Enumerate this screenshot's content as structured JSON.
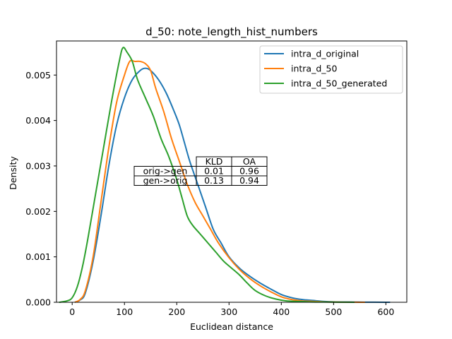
{
  "chart_data": {
    "type": "line",
    "title": "d_50: note_length_hist_numbers",
    "xlabel": "Euclidean distance",
    "ylabel": "Density",
    "xlim": [
      -30,
      640
    ],
    "ylim": [
      0,
      0.00575
    ],
    "xticks": [
      0,
      100,
      200,
      300,
      400,
      500,
      600
    ],
    "xtick_labels": [
      "0",
      "100",
      "200",
      "300",
      "400",
      "500",
      "600"
    ],
    "yticks": [
      0,
      0.001,
      0.002,
      0.003,
      0.004,
      0.005
    ],
    "ytick_labels": [
      "0.000",
      "0.001",
      "0.002",
      "0.003",
      "0.004",
      "0.005"
    ],
    "grid": false,
    "legend_position": "upper right",
    "series": [
      {
        "name": "intra_d_original",
        "color": "#1f77b4",
        "x": [
          5,
          15,
          25,
          40,
          55,
          70,
          85,
          100,
          115,
          130,
          140,
          150,
          165,
          180,
          195,
          205,
          215,
          225,
          240,
          255,
          270,
          285,
          300,
          320,
          340,
          360,
          380,
          400,
          420,
          440,
          460,
          480,
          500,
          530,
          560,
          600,
          608
        ],
        "y": [
          0.0,
          5e-05,
          0.0002,
          0.0009,
          0.0019,
          0.003,
          0.0039,
          0.0045,
          0.0049,
          0.0051,
          0.00515,
          0.0051,
          0.0049,
          0.0046,
          0.0042,
          0.0039,
          0.0035,
          0.0031,
          0.0026,
          0.0021,
          0.0016,
          0.0013,
          0.001,
          0.00075,
          0.00057,
          0.00042,
          0.00029,
          0.00017,
          0.0001,
          6e-05,
          4e-05,
          2e-05,
          1e-05,
          5e-06,
          2e-06,
          1e-06,
          0.0
        ]
      },
      {
        "name": "intra_d_50",
        "color": "#ff7f0e",
        "x": [
          5,
          15,
          25,
          40,
          55,
          70,
          85,
          100,
          110,
          120,
          130,
          140,
          150,
          160,
          175,
          190,
          205,
          220,
          235,
          250,
          265,
          280,
          300,
          320,
          340,
          360,
          380,
          400,
          420,
          440,
          460,
          480,
          500,
          530,
          560
        ],
        "y": [
          0.0,
          6e-05,
          0.00025,
          0.001,
          0.0022,
          0.0034,
          0.0044,
          0.005,
          0.0053,
          0.0053,
          0.0053,
          0.00525,
          0.0051,
          0.0047,
          0.0042,
          0.0036,
          0.0031,
          0.0026,
          0.0022,
          0.0019,
          0.0016,
          0.0013,
          0.00098,
          0.00072,
          0.00052,
          0.00036,
          0.00023,
          0.00012,
          6e-05,
          3e-05,
          2e-05,
          1e-05,
          5e-06,
          2e-06,
          0.0
        ]
      },
      {
        "name": "intra_d_50_generated",
        "color": "#2ca02c",
        "x": [
          -25,
          -10,
          0,
          10,
          20,
          30,
          45,
          60,
          75,
          90,
          97,
          105,
          115,
          125,
          140,
          155,
          170,
          185,
          200,
          210,
          220,
          230,
          245,
          260,
          275,
          290,
          305,
          320,
          335,
          350,
          370,
          390,
          410,
          430,
          450,
          480,
          510,
          540
        ],
        "y": [
          0.0,
          3e-05,
          0.0001,
          0.00035,
          0.0008,
          0.0014,
          0.0024,
          0.0034,
          0.0044,
          0.0053,
          0.0056,
          0.0055,
          0.0053,
          0.0049,
          0.0045,
          0.0041,
          0.0036,
          0.0032,
          0.0027,
          0.0023,
          0.0019,
          0.0017,
          0.0015,
          0.0013,
          0.0011,
          0.0009,
          0.00075,
          0.0006,
          0.00042,
          0.00026,
          0.00014,
          7e-05,
          3e-05,
          2e-05,
          1e-05,
          5e-06,
          2e-06,
          0.0
        ]
      }
    ],
    "table": {
      "columns": [
        "KLD",
        "OA"
      ],
      "rows": [
        {
          "label": "orig->gen",
          "values": [
            "0.01",
            "0.96"
          ]
        },
        {
          "label": "gen->orig",
          "values": [
            "0.13",
            "0.94"
          ]
        }
      ]
    }
  }
}
